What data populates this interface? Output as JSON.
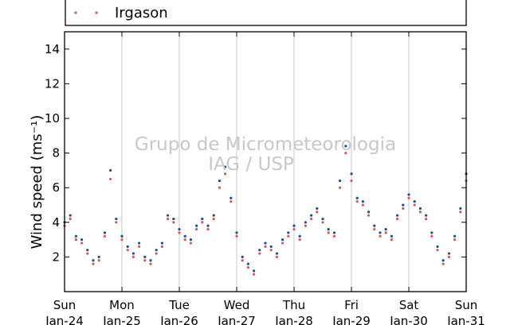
{
  "legend": {
    "entries": [
      {
        "label": "Irgason",
        "color": "#d05a5a",
        "marker": "dot"
      }
    ]
  },
  "watermark": {
    "line1": "Grupo de Micrometeorologia",
    "line2": "IAG / USP"
  },
  "chart_data": {
    "type": "scatter",
    "title": "",
    "ylabel": "Wind speed (ms⁻¹)",
    "ylim": [
      0,
      15
    ],
    "yticks": [
      2,
      4,
      6,
      8,
      10,
      12,
      14
    ],
    "xlim": [
      0,
      7
    ],
    "grid": "vertical gridlines at day boundaries",
    "xticks": [
      {
        "day": "Sun",
        "date": "Jan-24",
        "x": 0
      },
      {
        "day": "Mon",
        "date": "Jan-25",
        "x": 1
      },
      {
        "day": "Tue",
        "date": "Jan-26",
        "x": 2
      },
      {
        "day": "Wed",
        "date": "Jan-27",
        "x": 3
      },
      {
        "day": "Thu",
        "date": "Jan-28",
        "x": 4
      },
      {
        "day": "Fri",
        "date": "Jan-29",
        "x": 5
      },
      {
        "day": "Sat",
        "date": "Jan-30",
        "x": 6
      },
      {
        "day": "Sun",
        "date": "Jan-31",
        "x": 7
      }
    ],
    "series": [
      {
        "name": "Irgason",
        "color": "#d05a5a",
        "x": [
          0.0,
          0.1,
          0.2,
          0.3,
          0.4,
          0.5,
          0.6,
          0.7,
          0.8,
          0.9,
          1.0,
          1.1,
          1.2,
          1.3,
          1.4,
          1.5,
          1.6,
          1.7,
          1.8,
          1.9,
          2.0,
          2.1,
          2.2,
          2.3,
          2.4,
          2.5,
          2.6,
          2.7,
          2.8,
          2.9,
          3.0,
          3.1,
          3.2,
          3.3,
          3.4,
          3.5,
          3.6,
          3.7,
          3.8,
          3.9,
          4.0,
          4.1,
          4.2,
          4.3,
          4.4,
          4.5,
          4.6,
          4.7,
          4.8,
          4.9,
          5.0,
          5.1,
          5.2,
          5.3,
          5.4,
          5.5,
          5.6,
          5.7,
          5.8,
          5.9,
          6.0,
          6.1,
          6.2,
          6.3,
          6.4,
          6.5,
          6.6,
          6.7,
          6.8,
          6.9,
          7.0
        ],
        "values": [
          3.8,
          4.2,
          3.0,
          2.8,
          2.2,
          1.6,
          1.8,
          3.2,
          6.5,
          4.0,
          3.0,
          2.4,
          2.0,
          2.6,
          1.8,
          1.6,
          2.2,
          2.6,
          4.2,
          4.0,
          3.4,
          3.0,
          2.8,
          3.6,
          4.0,
          3.6,
          4.2,
          6.0,
          6.8,
          5.2,
          3.2,
          1.8,
          1.4,
          1.0,
          2.2,
          2.6,
          2.4,
          2.0,
          2.8,
          3.2,
          3.6,
          3.0,
          3.8,
          4.2,
          4.6,
          4.0,
          3.4,
          3.2,
          6.0,
          8.0,
          6.4,
          5.2,
          5.0,
          4.4,
          3.6,
          3.2,
          3.4,
          3.0,
          4.2,
          4.8,
          5.4,
          5.0,
          4.6,
          4.2,
          3.2,
          2.4,
          1.6,
          2.0,
          3.0,
          4.6,
          6.4
        ]
      },
      {
        "name": "",
        "color": "#1f4e8c",
        "x": [
          0.0,
          0.1,
          0.2,
          0.3,
          0.4,
          0.5,
          0.6,
          0.7,
          0.8,
          0.9,
          1.0,
          1.1,
          1.2,
          1.3,
          1.4,
          1.5,
          1.6,
          1.7,
          1.8,
          1.9,
          2.0,
          2.1,
          2.2,
          2.3,
          2.4,
          2.5,
          2.6,
          2.7,
          2.8,
          2.9,
          3.0,
          3.1,
          3.2,
          3.3,
          3.4,
          3.5,
          3.6,
          3.7,
          3.8,
          3.9,
          4.0,
          4.1,
          4.2,
          4.3,
          4.4,
          4.5,
          4.6,
          4.7,
          4.8,
          4.9,
          5.0,
          5.1,
          5.2,
          5.3,
          5.4,
          5.5,
          5.6,
          5.7,
          5.8,
          5.9,
          6.0,
          6.1,
          6.2,
          6.3,
          6.4,
          6.5,
          6.6,
          6.7,
          6.8,
          6.9,
          7.0
        ],
        "values": [
          4.0,
          4.4,
          3.2,
          3.0,
          2.4,
          1.8,
          2.0,
          3.4,
          7.0,
          4.2,
          3.2,
          2.6,
          2.2,
          2.8,
          2.0,
          1.8,
          2.4,
          2.8,
          4.4,
          4.2,
          3.6,
          3.2,
          3.0,
          3.8,
          4.2,
          3.8,
          4.4,
          6.4,
          7.2,
          5.4,
          3.4,
          2.0,
          1.6,
          1.2,
          2.4,
          2.8,
          2.6,
          2.2,
          3.0,
          3.4,
          3.8,
          3.2,
          4.0,
          4.4,
          4.8,
          4.2,
          3.6,
          3.4,
          6.4,
          8.4,
          6.8,
          5.4,
          5.2,
          4.6,
          3.8,
          3.4,
          3.6,
          3.2,
          4.4,
          5.0,
          5.6,
          5.2,
          4.8,
          4.4,
          3.4,
          2.6,
          1.8,
          2.2,
          3.2,
          4.8,
          6.8
        ]
      }
    ]
  }
}
